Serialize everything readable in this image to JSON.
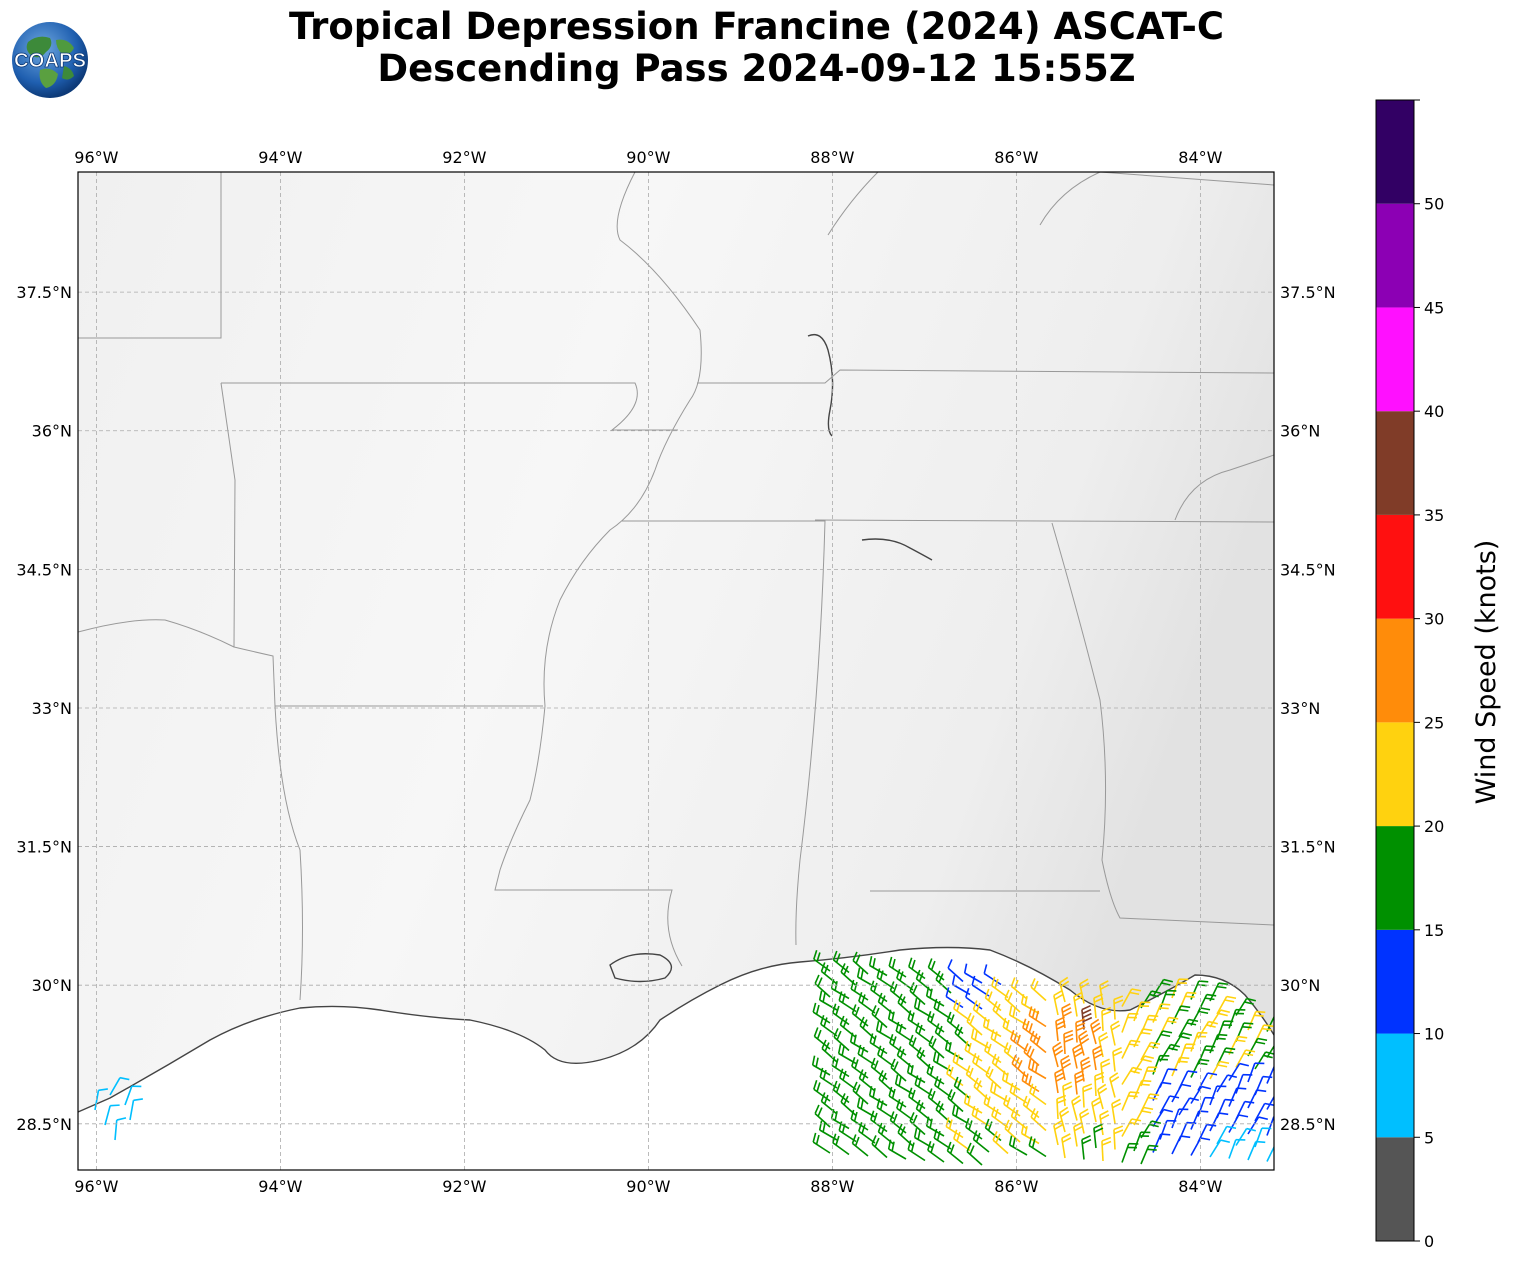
{
  "title": {
    "line1": "Tropical Depression Francine (2024) ASCAT-C",
    "line2": "Descending Pass 2024-09-12 15:55Z"
  },
  "logo": {
    "text": "COAPS"
  },
  "map": {
    "lon_ticks": [
      "96°W",
      "94°W",
      "92°W",
      "90°W",
      "88°W",
      "86°W",
      "84°W"
    ],
    "lat_ticks": [
      "37.5°N",
      "36°N",
      "34.5°N",
      "33°N",
      "31.5°N",
      "30°N",
      "28.5°N"
    ],
    "lon_range": [
      -96.2,
      -83.2
    ],
    "lat_range": [
      28.0,
      38.8
    ],
    "gridlines": true
  },
  "colorbar": {
    "label": "Wind Speed (knots)",
    "ticks": [
      "0",
      "5",
      "10",
      "15",
      "20",
      "25",
      "30",
      "35",
      "40",
      "45",
      "50"
    ],
    "bins": [
      {
        "min": 0,
        "max": 5,
        "color": "#555555"
      },
      {
        "min": 5,
        "max": 10,
        "color": "#00bfff"
      },
      {
        "min": 10,
        "max": 15,
        "color": "#0033ff"
      },
      {
        "min": 15,
        "max": 20,
        "color": "#009000"
      },
      {
        "min": 20,
        "max": 25,
        "color": "#ffd20f"
      },
      {
        "min": 25,
        "max": 30,
        "color": "#ff8c0a"
      },
      {
        "min": 30,
        "max": 35,
        "color": "#ff1010"
      },
      {
        "min": 35,
        "max": 40,
        "color": "#803c28"
      },
      {
        "min": 40,
        "max": 45,
        "color": "#ff10ff"
      },
      {
        "min": 45,
        "max": 50,
        "color": "#8c00b4"
      },
      {
        "min": 50,
        "max": 55,
        "color": "#320064"
      }
    ]
  }
}
